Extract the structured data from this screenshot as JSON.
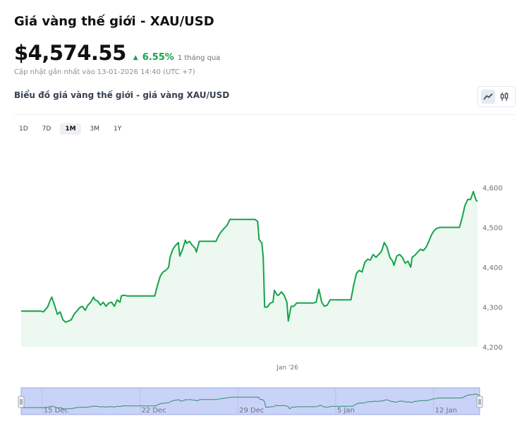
{
  "header": {
    "title": "Giá vàng thế giới - XAU/USD",
    "price": "$4,574.55",
    "change_pct": "6.55%",
    "change_period": "1 tháng qua",
    "updated": "Cập nhật gần nhất vào 13-01-2026 14:40 (UTC +7)"
  },
  "chart_section": {
    "title": "Biểu đồ giá vàng thế giới - giá vàng XAU/USD",
    "view_modes": [
      "line-chart-icon",
      "candlestick-icon"
    ]
  },
  "ranges": [
    "1D",
    "7D",
    "1M",
    "3M",
    "1Y"
  ],
  "active_range": "1M",
  "colors": {
    "line": "#16a34a",
    "fill": "#ecf8f0",
    "navigator_bg": "#c9d3f7",
    "up": "#16a34a"
  },
  "chart_data": {
    "type": "area",
    "title": "",
    "xlabel": "",
    "ylabel": "",
    "ylim": [
      4200,
      4600
    ],
    "yticks": [
      "4,600",
      "4,500",
      "4,400",
      "4,300",
      "4,200"
    ],
    "ytick_values": [
      4600,
      4500,
      4400,
      4300,
      4200
    ],
    "xticks": [
      {
        "label": "Jan '26",
        "day": 19.14
      }
    ],
    "navigator_ticks": [
      {
        "label": "15 Dec",
        "day": 1.5
      },
      {
        "label": "22 Dec",
        "day": 8.5
      },
      {
        "label": "29 Dec",
        "day": 15.5
      },
      {
        "label": "5 Jan",
        "day": 22.5
      },
      {
        "label": "12 Jan",
        "day": 29.5
      }
    ],
    "series": [
      {
        "values": [
          [
            0,
            4290
          ],
          [
            0.5,
            4290
          ],
          [
            1,
            4290
          ],
          [
            1.4,
            4290
          ],
          [
            1.6,
            4288
          ],
          [
            1.9,
            4300
          ],
          [
            2.1,
            4318
          ],
          [
            2.2,
            4325
          ],
          [
            2.4,
            4305
          ],
          [
            2.6,
            4282
          ],
          [
            2.8,
            4288
          ],
          [
            3.0,
            4268
          ],
          [
            3.2,
            4262
          ],
          [
            3.4,
            4265
          ],
          [
            3.6,
            4268
          ],
          [
            3.8,
            4282
          ],
          [
            4.0,
            4290
          ],
          [
            4.2,
            4298
          ],
          [
            4.4,
            4302
          ],
          [
            4.6,
            4292
          ],
          [
            4.8,
            4305
          ],
          [
            5.0,
            4312
          ],
          [
            5.2,
            4325
          ],
          [
            5.3,
            4318
          ],
          [
            5.5,
            4315
          ],
          [
            5.7,
            4305
          ],
          [
            5.9,
            4312
          ],
          [
            6.1,
            4302
          ],
          [
            6.3,
            4310
          ],
          [
            6.5,
            4312
          ],
          [
            6.7,
            4302
          ],
          [
            6.9,
            4318
          ],
          [
            7.1,
            4312
          ],
          [
            7.2,
            4328
          ],
          [
            7.4,
            4330
          ],
          [
            7.6,
            4328
          ],
          [
            7.8,
            4328
          ],
          [
            8.0,
            4328
          ],
          [
            8.5,
            4328
          ],
          [
            9.0,
            4328
          ],
          [
            9.6,
            4328
          ],
          [
            9.8,
            4355
          ],
          [
            10.0,
            4378
          ],
          [
            10.2,
            4388
          ],
          [
            10.4,
            4392
          ],
          [
            10.6,
            4400
          ],
          [
            10.7,
            4425
          ],
          [
            10.9,
            4445
          ],
          [
            11.1,
            4455
          ],
          [
            11.3,
            4462
          ],
          [
            11.4,
            4428
          ],
          [
            11.6,
            4445
          ],
          [
            11.8,
            4468
          ],
          [
            11.9,
            4460
          ],
          [
            12.1,
            4465
          ],
          [
            12.3,
            4455
          ],
          [
            12.5,
            4448
          ],
          [
            12.6,
            4438
          ],
          [
            12.8,
            4465
          ],
          [
            13.0,
            4465
          ],
          [
            13.5,
            4465
          ],
          [
            14.0,
            4465
          ],
          [
            14.2,
            4480
          ],
          [
            14.4,
            4490
          ],
          [
            14.6,
            4498
          ],
          [
            14.8,
            4505
          ],
          [
            15.0,
            4520
          ],
          [
            15.5,
            4520
          ],
          [
            16.0,
            4520
          ],
          [
            16.5,
            4520
          ],
          [
            16.8,
            4520
          ],
          [
            17.0,
            4515
          ],
          [
            17.1,
            4470
          ],
          [
            17.3,
            4460
          ],
          [
            17.4,
            4425
          ],
          [
            17.5,
            4300
          ],
          [
            17.7,
            4300
          ],
          [
            17.9,
            4310
          ],
          [
            18.1,
            4312
          ],
          [
            18.2,
            4342
          ],
          [
            18.4,
            4330
          ],
          [
            18.5,
            4330
          ],
          [
            18.7,
            4338
          ],
          [
            18.9,
            4330
          ],
          [
            19.1,
            4312
          ],
          [
            19.2,
            4265
          ],
          [
            19.4,
            4302
          ],
          [
            19.6,
            4302
          ],
          [
            19.8,
            4310
          ],
          [
            20.0,
            4310
          ],
          [
            20.5,
            4310
          ],
          [
            21.0,
            4310
          ],
          [
            21.2,
            4312
          ],
          [
            21.4,
            4345
          ],
          [
            21.6,
            4312
          ],
          [
            21.8,
            4302
          ],
          [
            22.0,
            4305
          ],
          [
            22.2,
            4318
          ],
          [
            22.5,
            4318
          ],
          [
            23.0,
            4318
          ],
          [
            23.5,
            4318
          ],
          [
            23.7,
            4318
          ],
          [
            23.9,
            4355
          ],
          [
            24.1,
            4385
          ],
          [
            24.3,
            4392
          ],
          [
            24.5,
            4388
          ],
          [
            24.7,
            4412
          ],
          [
            24.9,
            4420
          ],
          [
            25.1,
            4418
          ],
          [
            25.3,
            4432
          ],
          [
            25.5,
            4425
          ],
          [
            25.7,
            4432
          ],
          [
            25.9,
            4440
          ],
          [
            26.1,
            4462
          ],
          [
            26.3,
            4450
          ],
          [
            26.5,
            4425
          ],
          [
            26.7,
            4415
          ],
          [
            26.8,
            4405
          ],
          [
            27.0,
            4428
          ],
          [
            27.2,
            4432
          ],
          [
            27.4,
            4425
          ],
          [
            27.6,
            4410
          ],
          [
            27.8,
            4415
          ],
          [
            28.0,
            4400
          ],
          [
            28.1,
            4425
          ],
          [
            28.3,
            4430
          ],
          [
            28.5,
            4438
          ],
          [
            28.7,
            4445
          ],
          [
            28.9,
            4442
          ],
          [
            29.1,
            4450
          ],
          [
            29.3,
            4465
          ],
          [
            29.5,
            4482
          ],
          [
            29.7,
            4493
          ],
          [
            29.9,
            4498
          ],
          [
            30.1,
            4500
          ],
          [
            30.5,
            4500
          ],
          [
            31.0,
            4500
          ],
          [
            31.5,
            4500
          ],
          [
            31.7,
            4525
          ],
          [
            31.9,
            4555
          ],
          [
            32.1,
            4570
          ],
          [
            32.3,
            4570
          ],
          [
            32.5,
            4590
          ],
          [
            32.7,
            4568
          ],
          [
            32.8,
            4565
          ]
        ]
      }
    ],
    "navigator": {
      "ticks": [
        "15 Dec",
        "22 Dec",
        "29 Dec",
        "5 Jan",
        "12 Jan"
      ]
    }
  }
}
